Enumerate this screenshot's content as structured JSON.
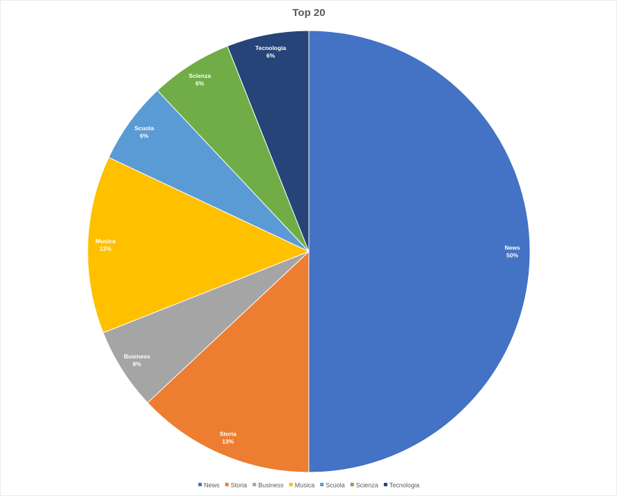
{
  "chart_data": {
    "type": "pie",
    "title": "Top 20",
    "categories": [
      "News",
      "Storia",
      "Business",
      "Musica",
      "Scuola",
      "Scienza",
      "Tecnologia"
    ],
    "values": [
      50,
      13,
      6,
      13,
      6,
      6,
      6
    ],
    "value_labels": [
      "50%",
      "13%",
      "6%",
      "13%",
      "6%",
      "6%",
      "6%"
    ],
    "colors": [
      "#4472c4",
      "#ed7d31",
      "#a5a5a5",
      "#ffc000",
      "#5b9bd5",
      "#70ad47",
      "#264478"
    ],
    "legend": "bottom"
  }
}
